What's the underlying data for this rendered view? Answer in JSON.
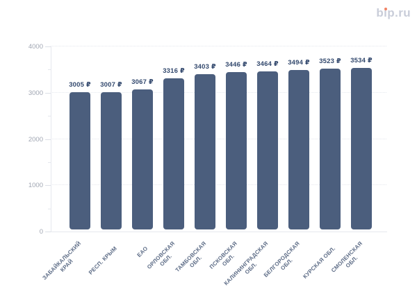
{
  "page": {
    "background": "#ffffff"
  },
  "logo": {
    "full_text": "bip.ru",
    "part1": "b",
    "part2": "ı",
    "part3": "p.ru",
    "text_color": "#c9cdd9",
    "dot_color": "#f08264"
  },
  "chart_data": {
    "type": "bar",
    "title": "",
    "categories": [
      "ЗАБАЙКАЛЬСКИЙ\nКРАЙ",
      "РЕСП. КРЫМ",
      "ЕАО",
      "ОРЛОВСКАЯ\nОБЛ.",
      "ТАМБОВСКАЯ\nОБЛ.",
      "ПСКОВСКАЯ\nОБЛ.",
      "КАЛИНИНГРАДСКАЯ\nОБЛ.",
      "БЕЛГОРОДСКАЯ\nОБЛ.",
      "КУРСКАЯ ОБЛ.",
      "СМОЛЕНСКАЯ\nОБЛ."
    ],
    "values": [
      3005,
      3007,
      3067,
      3316,
      3403,
      3446,
      3464,
      3494,
      3523,
      3534
    ],
    "value_labels": [
      "3005 ₽",
      "3007 ₽",
      "3067 ₽",
      "3316 ₽",
      "3403 ₽",
      "3446 ₽",
      "3464 ₽",
      "3494 ₽",
      "3523 ₽",
      "3534 ₽"
    ],
    "xlabel": "",
    "ylabel": "",
    "ylim": [
      0,
      4000
    ],
    "ytick_values": [
      0,
      1000,
      2000,
      3000,
      4000
    ],
    "ytick_labels": [
      "0",
      "1000",
      "2000",
      "3000",
      "4000"
    ],
    "minor_tick_values": [
      500,
      1500,
      2500,
      3500
    ],
    "grid": "horizontal-dotted",
    "legend": "none",
    "bar_color": "#4b5e7d",
    "value_label_color": "#32486d",
    "ytick_label_color": "#a0a6b2",
    "category_label_color": "#5e6d87",
    "axis_line_color": "#e6e8ee",
    "gridline_color": "#e4e7ed"
  }
}
